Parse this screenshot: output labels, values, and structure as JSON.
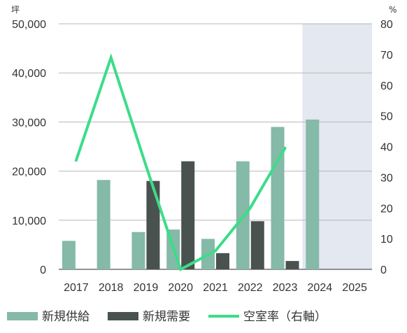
{
  "chart_data": {
    "type": "bar+line",
    "categories": [
      "2017",
      "2018",
      "2019",
      "2020",
      "2021",
      "2022",
      "2023",
      "2024",
      "2025"
    ],
    "series": [
      {
        "name": "新規供給",
        "type": "bar",
        "axis": "left",
        "color": "#85b9a8",
        "values": [
          5800,
          18200,
          7600,
          8100,
          6200,
          22000,
          29000,
          30500,
          null
        ]
      },
      {
        "name": "新規需要",
        "type": "bar",
        "axis": "left",
        "color": "#4a5250",
        "values": [
          null,
          null,
          18000,
          22000,
          3300,
          9800,
          1700,
          null,
          null
        ]
      },
      {
        "name": "空室率（右軸）",
        "type": "line",
        "axis": "right",
        "color": "#3ddc8a",
        "values": [
          35.5,
          69,
          34,
          0,
          6,
          20,
          39.5,
          null,
          null
        ]
      }
    ],
    "y_left": {
      "unit": "坪",
      "ylim": [
        0,
        50000
      ],
      "ticks": [
        "0",
        "10,000",
        "20,000",
        "30,000",
        "40,000",
        "50,000"
      ]
    },
    "y_right": {
      "unit": "%",
      "ylim": [
        0,
        80
      ],
      "ticks": [
        "0",
        "10",
        "20",
        "30",
        "40",
        "50",
        "60",
        "70",
        "80"
      ]
    },
    "shaded_categories": [
      "2024",
      "2025"
    ],
    "shade_color": "#e3e8f1",
    "grid": true,
    "legend": "bottom"
  }
}
